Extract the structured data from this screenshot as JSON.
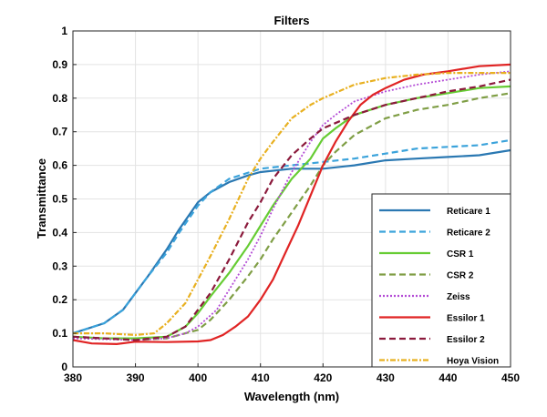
{
  "chart_data": {
    "type": "line",
    "title": "Filters",
    "xlabel": "Wavelength (nm)",
    "ylabel": "Transmittance",
    "xlim": [
      380,
      450
    ],
    "ylim": [
      0,
      1
    ],
    "xticks": [
      380,
      390,
      400,
      410,
      420,
      430,
      440,
      450
    ],
    "yticks": [
      0,
      0.1,
      0.2,
      0.3,
      0.4,
      0.5,
      0.6,
      0.7,
      0.8,
      0.9,
      1
    ],
    "ytick_labels": [
      "0",
      "0.1",
      "0.2",
      "0.3",
      "0.4",
      "0.5",
      "0.6",
      "0.7",
      "0.8",
      "0.9",
      "1"
    ],
    "grid": true,
    "legend_position": "bottom-right",
    "series": [
      {
        "name": "Reticare 1",
        "color": "#2a78b2",
        "style": "solid",
        "x": [
          380,
          385,
          388,
          390,
          392,
          395,
          397,
          400,
          402,
          405,
          408,
          410,
          415,
          420,
          425,
          430,
          435,
          440,
          445,
          450
        ],
        "y": [
          0.1,
          0.13,
          0.17,
          0.22,
          0.27,
          0.35,
          0.41,
          0.49,
          0.52,
          0.55,
          0.57,
          0.58,
          0.59,
          0.59,
          0.6,
          0.615,
          0.62,
          0.625,
          0.63,
          0.645
        ]
      },
      {
        "name": "Reticare 2",
        "color": "#3ba3db",
        "style": "dashed",
        "x": [
          380,
          385,
          388,
          390,
          392,
          395,
          397,
          400,
          402,
          405,
          410,
          415,
          420,
          425,
          430,
          435,
          440,
          445,
          450
        ],
        "y": [
          0.1,
          0.13,
          0.17,
          0.22,
          0.27,
          0.34,
          0.4,
          0.48,
          0.52,
          0.56,
          0.59,
          0.6,
          0.61,
          0.62,
          0.635,
          0.65,
          0.655,
          0.66,
          0.675
        ]
      },
      {
        "name": "CSR 1",
        "color": "#66cc33",
        "style": "solid",
        "x": [
          380,
          385,
          390,
          395,
          398,
          400,
          402,
          405,
          408,
          410,
          412,
          415,
          418,
          420,
          422,
          425,
          430,
          435,
          440,
          445,
          450
        ],
        "y": [
          0.09,
          0.085,
          0.085,
          0.09,
          0.12,
          0.16,
          0.21,
          0.28,
          0.36,
          0.42,
          0.48,
          0.56,
          0.62,
          0.68,
          0.71,
          0.75,
          0.78,
          0.8,
          0.815,
          0.83,
          0.835
        ]
      },
      {
        "name": "CSR 2",
        "color": "#7f9e45",
        "style": "dashed",
        "x": [
          380,
          390,
          395,
          400,
          402,
          405,
          408,
          410,
          412,
          415,
          418,
          420,
          422,
          425,
          430,
          435,
          440,
          445,
          450
        ],
        "y": [
          0.09,
          0.08,
          0.085,
          0.11,
          0.14,
          0.2,
          0.27,
          0.32,
          0.38,
          0.46,
          0.54,
          0.6,
          0.64,
          0.69,
          0.74,
          0.765,
          0.78,
          0.8,
          0.815
        ]
      },
      {
        "name": "Zeiss",
        "color": "#b44cd6",
        "style": "dotted",
        "x": [
          380,
          390,
          395,
          398,
          400,
          403,
          405,
          408,
          410,
          412,
          415,
          418,
          420,
          422,
          425,
          430,
          435,
          440,
          445,
          450
        ],
        "y": [
          0.085,
          0.08,
          0.085,
          0.1,
          0.12,
          0.17,
          0.23,
          0.32,
          0.39,
          0.47,
          0.58,
          0.67,
          0.72,
          0.75,
          0.79,
          0.82,
          0.84,
          0.855,
          0.87,
          0.88
        ]
      },
      {
        "name": "Essilor 1",
        "color": "#e02424",
        "style": "solid",
        "x": [
          380,
          383,
          387,
          390,
          395,
          400,
          402,
          404,
          406,
          408,
          410,
          412,
          414,
          416,
          418,
          420,
          422,
          424,
          426,
          428,
          430,
          433,
          436,
          440,
          445,
          450
        ],
        "y": [
          0.08,
          0.07,
          0.068,
          0.075,
          0.074,
          0.076,
          0.08,
          0.095,
          0.12,
          0.15,
          0.2,
          0.26,
          0.34,
          0.42,
          0.51,
          0.6,
          0.67,
          0.73,
          0.78,
          0.81,
          0.83,
          0.855,
          0.87,
          0.88,
          0.895,
          0.9
        ]
      },
      {
        "name": "Essilor 2",
        "color": "#8b1a3c",
        "style": "dashed",
        "x": [
          380,
          390,
          395,
          398,
          400,
          402,
          405,
          408,
          410,
          412,
          415,
          418,
          420,
          425,
          430,
          435,
          440,
          445,
          450
        ],
        "y": [
          0.09,
          0.08,
          0.09,
          0.12,
          0.17,
          0.22,
          0.32,
          0.43,
          0.49,
          0.56,
          0.63,
          0.68,
          0.71,
          0.75,
          0.78,
          0.8,
          0.82,
          0.835,
          0.855
        ]
      },
      {
        "name": "Hoya Vision",
        "color": "#e8b020",
        "style": "dashdot",
        "x": [
          380,
          385,
          390,
          393,
          395,
          398,
          400,
          402,
          405,
          408,
          410,
          412,
          415,
          418,
          420,
          425,
          430,
          435,
          440,
          445,
          450
        ],
        "y": [
          0.1,
          0.1,
          0.095,
          0.1,
          0.13,
          0.19,
          0.26,
          0.33,
          0.44,
          0.56,
          0.62,
          0.67,
          0.74,
          0.78,
          0.8,
          0.84,
          0.86,
          0.87,
          0.875,
          0.875,
          0.875
        ]
      }
    ]
  }
}
